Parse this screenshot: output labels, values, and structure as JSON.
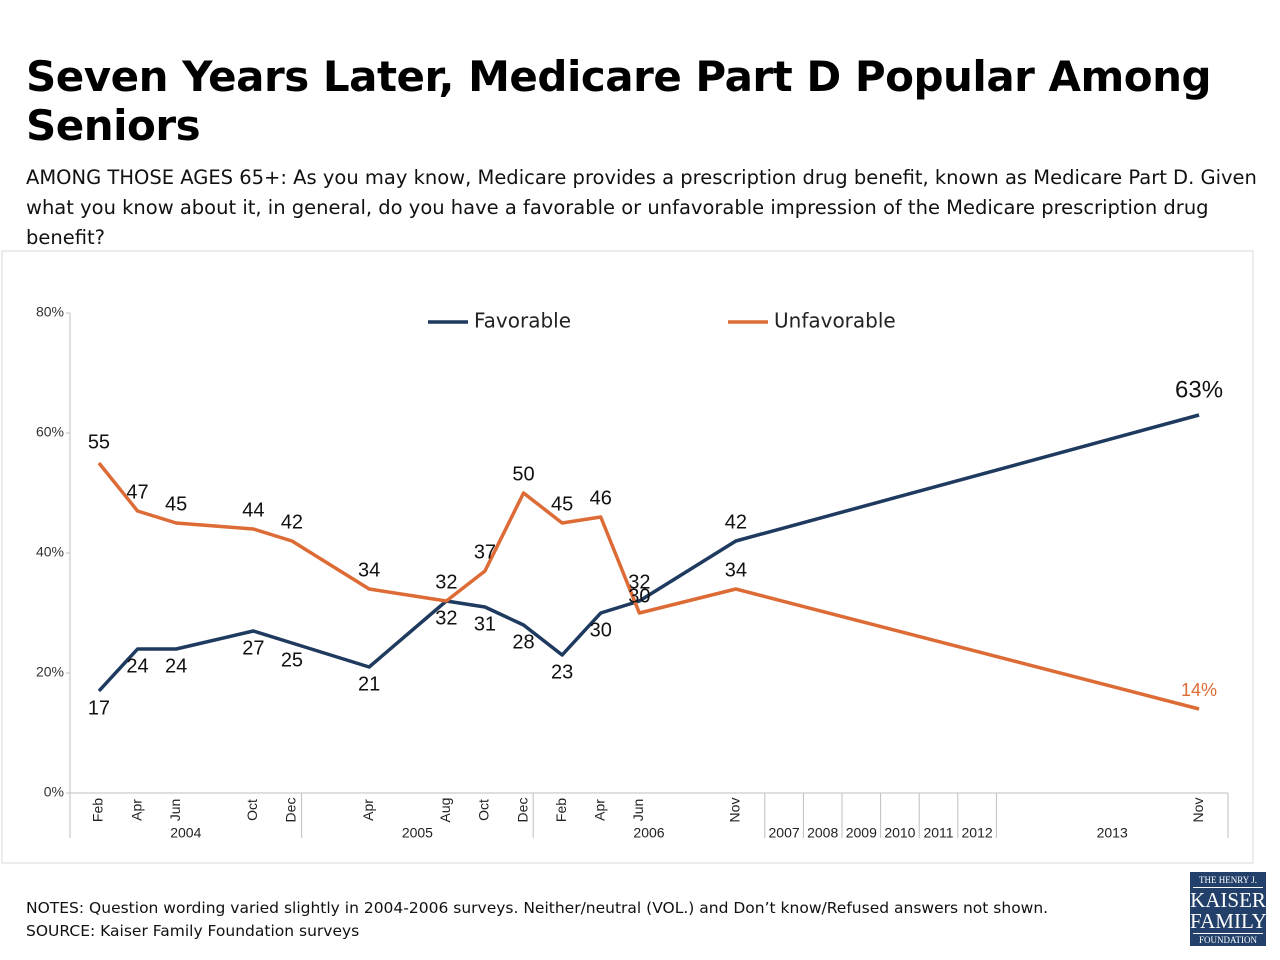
{
  "title": "Seven Years Later, Medicare Part D Popular Among Seniors",
  "subtitle": "AMONG THOSE AGES 65+: As you may know, Medicare provides a prescription drug benefit, known as Medicare Part D. Given what you know about it, in general, do you have a favorable or unfavorable impression of the Medicare prescription drug benefit?",
  "notes": [
    "NOTES: Question wording varied slightly in 2004-2006 surveys. Neither/neutral (VOL.) and Don’t know/Refused  answers not shown.",
    "SOURCE: Kaiser Family Foundation surveys"
  ],
  "logo": [
    "THE HENRY J.",
    "KAISER",
    "FAMILY",
    "FOUNDATION"
  ],
  "chart_data": {
    "type": "line",
    "categories": [
      "Feb",
      "Apr",
      "Jun",
      "Oct",
      "Dec",
      "Apr",
      "Aug",
      "Oct",
      "Dec",
      "Feb",
      "Apr",
      "Jun",
      "Nov",
      "Nov"
    ],
    "years": [
      "2004",
      "2005",
      "2006",
      "2007",
      "2008",
      "2009",
      "2010",
      "2011",
      "2012",
      "2013"
    ],
    "series": [
      {
        "name": "Favorable",
        "color": "#1f3a5f",
        "values": [
          17,
          24,
          24,
          27,
          25,
          21,
          32,
          31,
          28,
          23,
          30,
          32,
          42,
          63
        ],
        "value_labels": [
          "17",
          "24",
          "24",
          "27",
          "25",
          "21",
          "32",
          "31",
          "28",
          "23",
          "30",
          "32",
          "42",
          "63%"
        ]
      },
      {
        "name": "Unfavorable",
        "color": "#dd6b35",
        "values": [
          55,
          47,
          45,
          44,
          42,
          34,
          32,
          37,
          50,
          45,
          46,
          30,
          34,
          14
        ],
        "value_labels": [
          "55",
          "47",
          "45",
          "44",
          "42",
          "34",
          "32",
          "37",
          "50",
          "45",
          "46",
          "30",
          "34",
          "14%"
        ]
      }
    ],
    "ylim": [
      0,
      80
    ],
    "yticks": [
      {
        "value": 0,
        "label": "0%"
      },
      {
        "value": 20,
        "label": "20%"
      },
      {
        "value": 40,
        "label": "40%"
      },
      {
        "value": 60,
        "label": "60%"
      },
      {
        "value": 80,
        "label": "80%"
      }
    ],
    "legend": "top"
  }
}
